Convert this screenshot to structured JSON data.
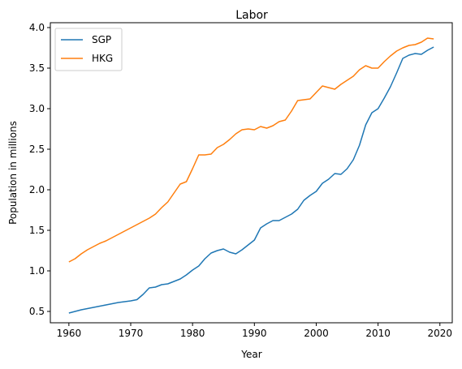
{
  "chart_data": {
    "type": "line",
    "title": "Labor",
    "xlabel": "Year",
    "ylabel": "Population in millions",
    "xlim": [
      1957,
      2022
    ],
    "ylim": [
      0.36,
      4.06
    ],
    "xticks": [
      1960,
      1970,
      1980,
      1990,
      2000,
      2010,
      2020
    ],
    "yticks": [
      0.5,
      1.0,
      1.5,
      2.0,
      2.5,
      3.0,
      3.5,
      4.0
    ],
    "ytick_labels": [
      "0.5",
      "1.0",
      "1.5",
      "2.0",
      "2.5",
      "3.0",
      "3.5",
      "4.0"
    ],
    "grid": false,
    "legend_position": "top-left",
    "x": [
      1960,
      1961,
      1962,
      1963,
      1964,
      1965,
      1966,
      1967,
      1968,
      1969,
      1970,
      1971,
      1972,
      1973,
      1974,
      1975,
      1976,
      1977,
      1978,
      1979,
      1980,
      1981,
      1982,
      1983,
      1984,
      1985,
      1986,
      1987,
      1988,
      1989,
      1990,
      1991,
      1992,
      1993,
      1994,
      1995,
      1996,
      1997,
      1998,
      1999,
      2000,
      2001,
      2002,
      2003,
      2004,
      2005,
      2006,
      2007,
      2008,
      2009,
      2010,
      2011,
      2012,
      2013,
      2014,
      2015,
      2016,
      2017,
      2018,
      2019
    ],
    "series": [
      {
        "name": "SGP",
        "color": "#1f77b4",
        "values": [
          0.48,
          0.5,
          0.52,
          0.535,
          0.55,
          0.565,
          0.58,
          0.595,
          0.61,
          0.62,
          0.63,
          0.645,
          0.71,
          0.79,
          0.8,
          0.83,
          0.84,
          0.87,
          0.9,
          0.95,
          1.01,
          1.06,
          1.15,
          1.22,
          1.25,
          1.27,
          1.23,
          1.21,
          1.26,
          1.32,
          1.38,
          1.53,
          1.58,
          1.62,
          1.62,
          1.66,
          1.7,
          1.76,
          1.87,
          1.93,
          1.98,
          2.08,
          2.13,
          2.2,
          2.19,
          2.26,
          2.37,
          2.55,
          2.8,
          2.95,
          3.0,
          3.13,
          3.27,
          3.44,
          3.62,
          3.66,
          3.68,
          3.67,
          3.72,
          3.76
        ]
      },
      {
        "name": "HKG",
        "color": "#ff7f0e",
        "values": [
          1.11,
          1.15,
          1.21,
          1.26,
          1.3,
          1.34,
          1.37,
          1.41,
          1.45,
          1.49,
          1.53,
          1.57,
          1.61,
          1.65,
          1.7,
          1.78,
          1.85,
          1.96,
          2.07,
          2.1,
          2.26,
          2.43,
          2.43,
          2.44,
          2.52,
          2.56,
          2.62,
          2.69,
          2.74,
          2.75,
          2.74,
          2.78,
          2.76,
          2.79,
          2.84,
          2.86,
          2.97,
          3.1,
          3.11,
          3.12,
          3.2,
          3.28,
          3.26,
          3.24,
          3.3,
          3.35,
          3.4,
          3.48,
          3.53,
          3.5,
          3.5,
          3.58,
          3.65,
          3.71,
          3.75,
          3.78,
          3.79,
          3.82,
          3.87,
          3.86
        ]
      }
    ]
  }
}
